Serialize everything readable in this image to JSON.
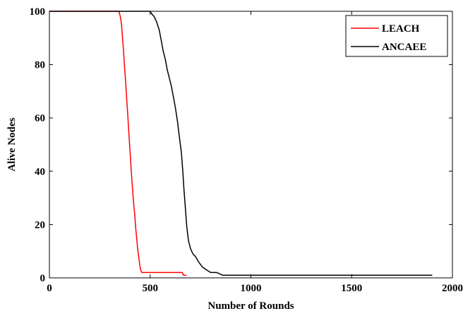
{
  "chart_data": {
    "type": "line",
    "xlabel": "Number of Rounds",
    "ylabel": "Alive Nodes",
    "xlim": [
      0,
      2000
    ],
    "ylim": [
      0,
      100
    ],
    "x_ticks": [
      0,
      500,
      1000,
      1500,
      2000
    ],
    "y_ticks": [
      0,
      20,
      40,
      60,
      80,
      100
    ],
    "x_tick_labels": [
      "0",
      "500",
      "1000",
      "1500",
      "2000"
    ],
    "y_tick_labels": [
      "0",
      "20",
      "40",
      "60",
      "80",
      "100"
    ],
    "grid": false,
    "legend_position": "top-right",
    "series": [
      {
        "name": "LEACH",
        "color": "#ff0000",
        "x": [
          0,
          345,
          352,
          358,
          363,
          368,
          372,
          378,
          383,
          388,
          393,
          398,
          403,
          408,
          413,
          418,
          423,
          428,
          433,
          438,
          443,
          448,
          453,
          458,
          463,
          470,
          520,
          580,
          640,
          660,
          665,
          680
        ],
        "y": [
          100,
          100,
          98,
          95,
          90,
          85,
          80,
          74,
          68,
          62,
          56,
          50,
          44,
          38,
          33,
          28,
          24,
          19,
          15,
          11,
          8,
          5,
          3,
          2,
          2,
          2,
          2,
          2,
          2,
          2,
          1,
          1
        ]
      },
      {
        "name": "ANCAEE",
        "color": "#000000",
        "x": [
          0,
          500,
          508,
          520,
          532,
          545,
          555,
          565,
          575,
          585,
          595,
          605,
          615,
          625,
          635,
          645,
          655,
          662,
          668,
          675,
          682,
          690,
          700,
          712,
          725,
          740,
          760,
          780,
          800,
          830,
          860,
          880,
          1000,
          1500,
          1900
        ],
        "y": [
          100,
          100,
          99,
          98,
          96,
          93,
          89,
          85,
          82,
          78,
          75,
          72,
          68,
          64,
          59,
          53,
          47,
          40,
          33,
          26,
          19,
          14,
          11,
          9,
          8,
          6,
          4,
          3,
          2,
          2,
          1,
          1,
          1,
          1,
          1
        ]
      }
    ]
  }
}
